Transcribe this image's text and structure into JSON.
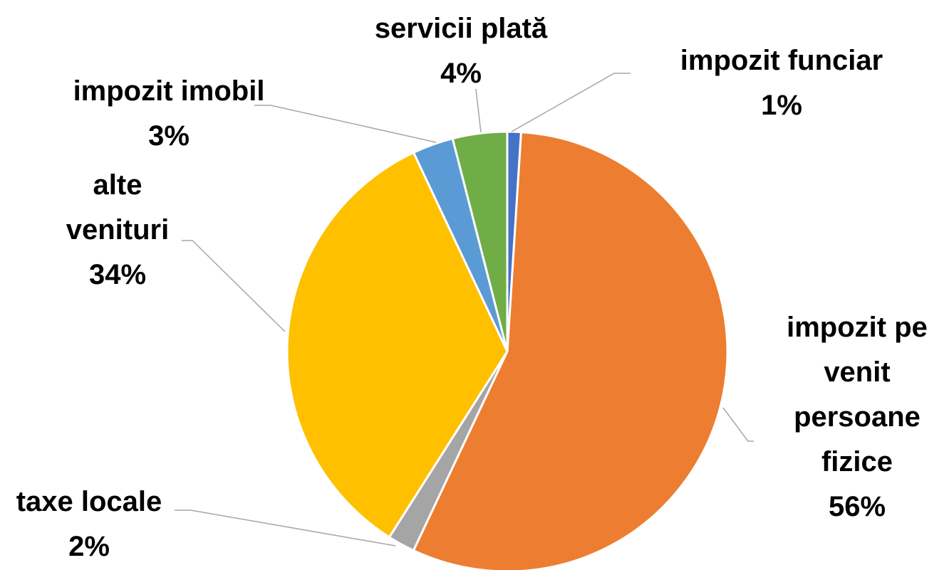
{
  "chart_data": {
    "type": "pie",
    "categories": [
      "impozit funciar",
      "impozit pe venit persoane fizice",
      "taxe locale",
      "alte venituri",
      "impozit imobil",
      "servicii plată"
    ],
    "values": [
      1,
      56,
      2,
      34,
      3,
      4
    ],
    "value_labels": [
      "1%",
      "56%",
      "2%",
      "34%",
      "3%",
      "4%"
    ],
    "colors": [
      "#4472c4",
      "#ed7d31",
      "#a5a5a5",
      "#ffc000",
      "#5b9bd5",
      "#70ad47"
    ]
  }
}
